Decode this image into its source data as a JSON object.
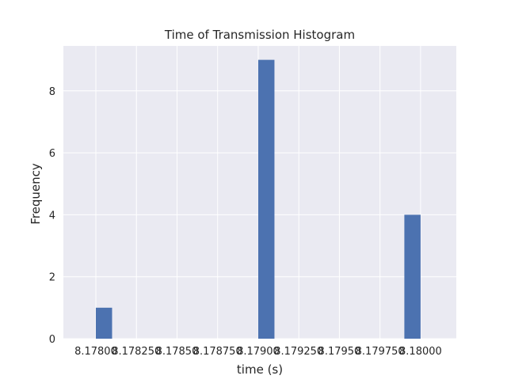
{
  "chart_data": {
    "type": "bar",
    "title": "Time of Transmission Histogram",
    "xlabel": "time (s)",
    "ylabel": "Frequency",
    "xlim": [
      8.1778,
      8.18022
    ],
    "ylim": [
      0,
      9.45
    ],
    "grid": true,
    "bin_width": 0.0001,
    "bins": [
      {
        "start": 8.178,
        "end": 8.1781,
        "count": 1
      },
      {
        "start": 8.179,
        "end": 8.1791,
        "count": 9
      },
      {
        "start": 8.1799,
        "end": 8.18,
        "count": 4
      }
    ],
    "x_ticks": [
      {
        "value": 8.178,
        "label": "8.17800"
      },
      {
        "value": 8.17825,
        "label": "8.178250"
      },
      {
        "value": 8.1785,
        "label": "8.17850"
      },
      {
        "value": 8.17875,
        "label": "8.178750"
      },
      {
        "value": 8.179,
        "label": "8.17900"
      },
      {
        "value": 8.17925,
        "label": "8.179250"
      },
      {
        "value": 8.1795,
        "label": "8.17950"
      },
      {
        "value": 8.17975,
        "label": "8.179750"
      },
      {
        "value": 8.18,
        "label": "8.18000"
      }
    ],
    "y_ticks": [
      {
        "value": 0,
        "label": "0"
      },
      {
        "value": 2,
        "label": "2"
      },
      {
        "value": 4,
        "label": "4"
      },
      {
        "value": 6,
        "label": "6"
      },
      {
        "value": 8,
        "label": "8"
      }
    ],
    "colors": {
      "bar": "#4c72b0",
      "plot_background": "#eaeaf2",
      "grid": "#ffffff",
      "text": "#262626"
    }
  }
}
